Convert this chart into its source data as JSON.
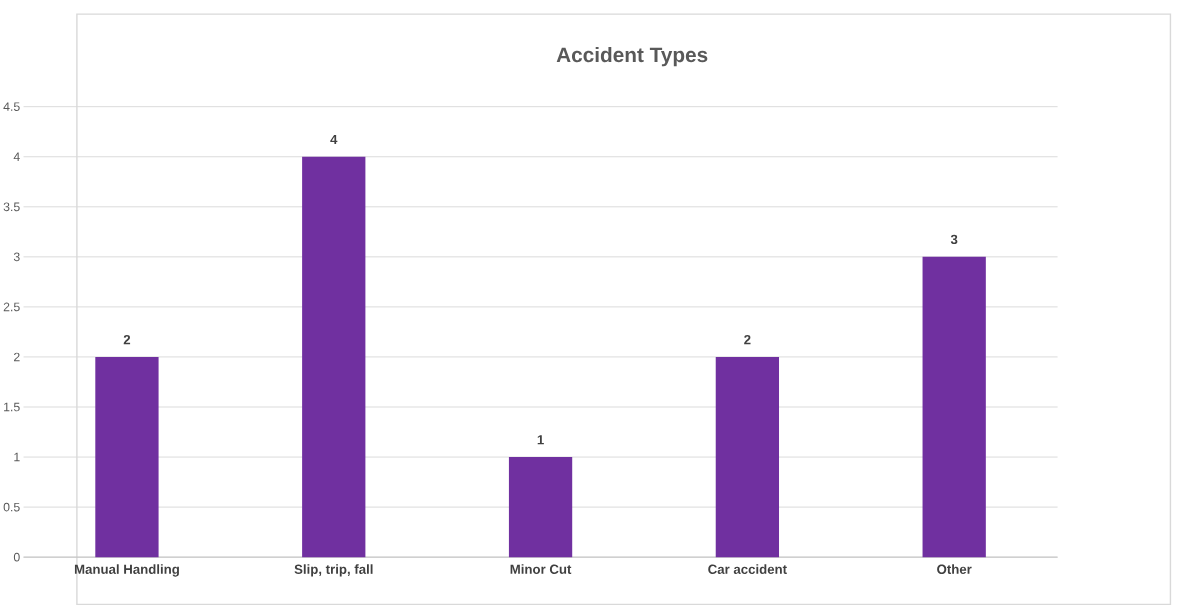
{
  "chart_data": {
    "type": "bar",
    "title": "Accident Types",
    "categories": [
      "Manual Handling",
      "Slip, trip, fall",
      "Minor Cut",
      "Car accident",
      "Other"
    ],
    "values": [
      2,
      4,
      1,
      2,
      3
    ],
    "color": "#7030a0",
    "ylim": [
      0,
      4.5
    ],
    "yticks": [
      0,
      0.5,
      1,
      1.5,
      2,
      2.5,
      3,
      3.5,
      4,
      4.5
    ],
    "grid": "y",
    "data_labels": true
  }
}
